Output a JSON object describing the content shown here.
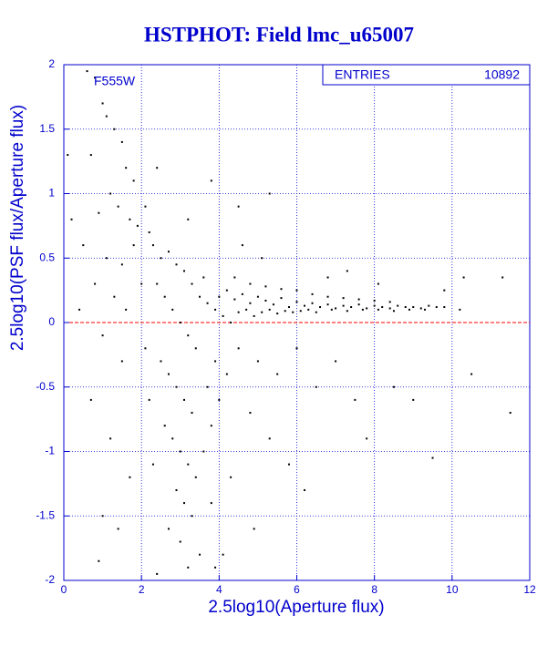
{
  "chart_data": {
    "type": "scatter",
    "title": "HSTPHOT: Field lmc_u65007",
    "annotation": "F555W",
    "stats": {
      "label": "ENTRIES",
      "value": 10892
    },
    "xlabel": "2.5log10(Aperture flux)",
    "ylabel": "2.5log10(PSF flux/Aperture flux)",
    "xlim": [
      0,
      12
    ],
    "ylim": [
      -2,
      2
    ],
    "xticks": [
      0,
      2,
      4,
      6,
      8,
      10,
      12
    ],
    "yticks": [
      -2,
      -1.5,
      -1,
      -0.5,
      0,
      0.5,
      1,
      1.5,
      2
    ],
    "grid": true,
    "color": "#000000",
    "reference_line": {
      "value": 0,
      "color": "#ff0000"
    },
    "x": [
      0.6,
      0.8,
      1.0,
      1.1,
      1.3,
      1.5,
      0.7,
      1.6,
      1.8,
      1.2,
      0.9,
      1.4,
      1.7,
      1.9,
      0.5,
      1.1,
      1.5,
      1.8,
      0.8,
      1.3,
      1.6,
      0.4,
      1.0,
      1.5,
      0.7,
      1.2,
      1.7,
      1.0,
      0.9,
      1.4,
      0.2,
      0.1,
      2.1,
      2.2,
      2.3,
      2.5,
      2.7,
      2.9,
      3.1,
      2.4,
      2.6,
      2.8,
      3.0,
      3.2,
      3.4,
      2.5,
      2.7,
      2.9,
      3.1,
      3.3,
      2.6,
      2.8,
      3.0,
      3.2,
      3.4,
      2.9,
      3.1,
      3.3,
      2.7,
      3.0,
      3.5,
      3.2,
      2.4,
      3.6,
      3.8,
      3.7,
      3.9,
      3.5,
      3.7,
      3.9,
      3.3,
      3.6,
      2.2,
      2.3,
      3.8,
      4.0,
      4.2,
      2.0,
      2.1,
      2.4,
      3.8,
      4.0,
      4.2,
      4.4,
      4.6,
      4.8,
      5.0,
      5.2,
      5.4,
      5.6,
      5.8,
      6.0,
      6.2,
      6.4,
      6.6,
      6.8,
      7.0,
      7.2,
      7.4,
      7.6,
      7.8,
      8.0,
      8.2,
      8.4,
      8.6,
      8.8,
      9.0,
      9.2,
      9.4,
      9.6,
      9.8,
      4.1,
      4.3,
      4.5,
      4.7,
      4.9,
      5.1,
      5.3,
      5.5,
      5.7,
      5.9,
      6.1,
      6.3,
      6.5,
      6.9,
      7.3,
      7.7,
      8.1,
      8.5,
      8.9,
      9.3,
      4.4,
      4.8,
      5.2,
      5.6,
      6.0,
      6.4,
      6.8,
      7.2,
      7.6,
      8.0,
      8.4,
      4.5,
      5.0,
      5.5,
      6.0,
      4.8,
      5.3,
      6.5,
      7.0,
      4.3,
      5.8,
      7.5,
      8.5,
      9.0,
      9.5,
      10.5,
      11.5,
      11.3,
      10.3,
      9.8,
      10.2,
      6.8,
      7.3,
      8.1,
      4.6,
      5.1,
      4.9,
      4.1,
      3.9,
      6.2,
      7.8,
      4.5,
      3.2,
      5.3
    ],
    "values": [
      1.95,
      1.9,
      1.7,
      1.6,
      1.5,
      1.4,
      1.3,
      1.2,
      1.1,
      1.0,
      0.85,
      0.9,
      0.8,
      0.75,
      0.6,
      0.5,
      0.45,
      0.6,
      0.3,
      0.2,
      0.1,
      0.1,
      -0.1,
      -0.3,
      -0.6,
      -0.9,
      -1.2,
      -1.5,
      -1.85,
      -1.6,
      0.8,
      1.3,
      0.9,
      0.7,
      0.6,
      0.5,
      0.55,
      0.45,
      0.4,
      0.3,
      0.2,
      0.1,
      0.0,
      -0.1,
      -0.2,
      -0.3,
      -0.4,
      -0.5,
      -0.6,
      -0.7,
      -0.8,
      -0.9,
      -1.0,
      -1.1,
      -1.2,
      -1.3,
      -1.4,
      -1.5,
      -1.6,
      -1.7,
      -1.8,
      -1.9,
      -1.95,
      -1.0,
      -0.8,
      -0.5,
      -0.3,
      0.2,
      0.15,
      0.1,
      0.3,
      0.35,
      -0.6,
      -1.1,
      -1.4,
      -0.6,
      -0.4,
      0.3,
      -0.2,
      1.2,
      1.1,
      0.2,
      0.25,
      0.18,
      0.22,
      0.15,
      0.2,
      0.17,
      0.14,
      0.19,
      0.12,
      0.16,
      0.13,
      0.15,
      0.12,
      0.14,
      0.11,
      0.13,
      0.12,
      0.14,
      0.11,
      0.13,
      0.12,
      0.11,
      0.13,
      0.12,
      0.12,
      0.11,
      0.13,
      0.12,
      0.12,
      0.05,
      0.0,
      0.08,
      0.1,
      0.05,
      0.08,
      0.1,
      0.07,
      0.09,
      0.08,
      0.09,
      0.1,
      0.08,
      0.1,
      0.09,
      0.1,
      0.1,
      0.09,
      0.1,
      0.1,
      0.35,
      0.3,
      0.28,
      0.26,
      0.25,
      0.22,
      0.2,
      0.19,
      0.18,
      0.17,
      0.16,
      -0.2,
      -0.3,
      -0.4,
      -0.2,
      -0.7,
      -0.9,
      -0.5,
      -0.3,
      -1.2,
      -1.1,
      -0.6,
      -0.5,
      -0.6,
      -1.05,
      -0.4,
      -0.7,
      0.35,
      0.35,
      0.25,
      0.1,
      0.35,
      0.4,
      0.3,
      0.6,
      0.5,
      -1.6,
      -1.8,
      -1.9,
      -1.3,
      -0.9,
      0.9,
      0.8,
      1.0
    ]
  }
}
